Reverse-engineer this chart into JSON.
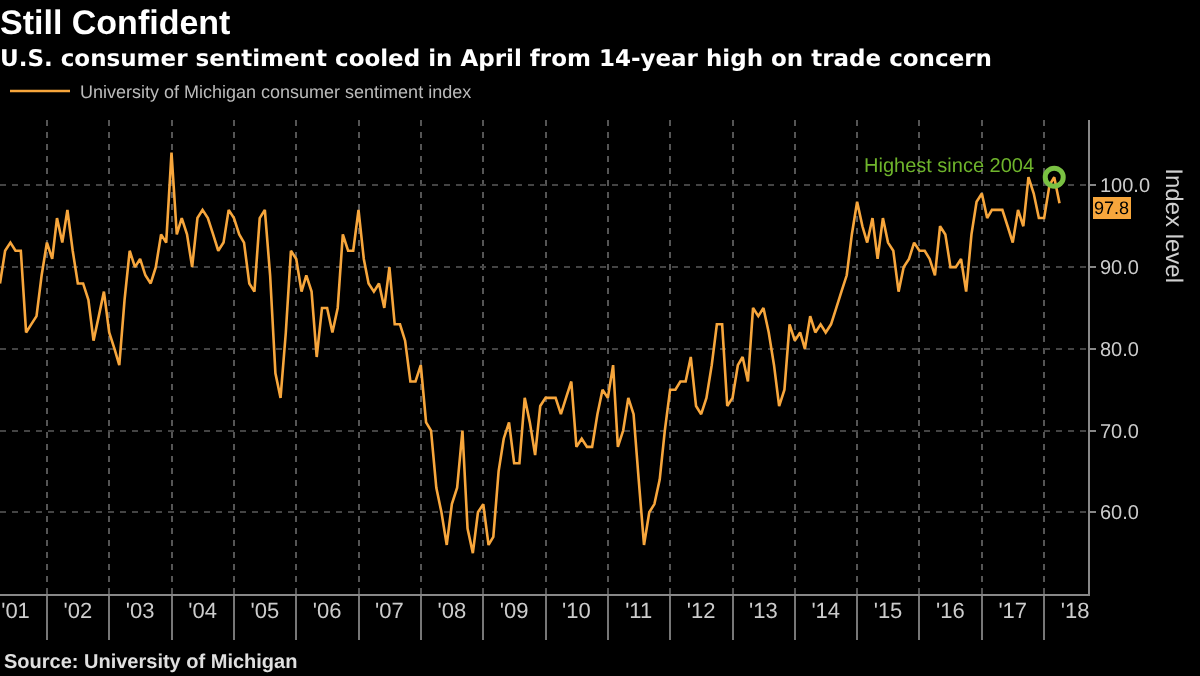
{
  "chart_data": {
    "type": "line",
    "title": "Still Confident",
    "subtitle": "U.S. consumer sentiment cooled in April from 14-year high on trade concern",
    "ylabel": "Index level",
    "x": [
      "2001-04",
      "2001-05",
      "2001-06",
      "2001-07",
      "2001-08",
      "2001-09",
      "2001-10",
      "2001-11",
      "2001-12",
      "2002-01",
      "2002-02",
      "2002-03",
      "2002-04",
      "2002-05",
      "2002-06",
      "2002-07",
      "2002-08",
      "2002-09",
      "2002-10",
      "2002-11",
      "2002-12",
      "2003-01",
      "2003-02",
      "2003-03",
      "2003-04",
      "2003-05",
      "2003-06",
      "2003-07",
      "2003-08",
      "2003-09",
      "2003-10",
      "2003-11",
      "2003-12",
      "2004-01",
      "2004-02",
      "2004-03",
      "2004-04",
      "2004-05",
      "2004-06",
      "2004-07",
      "2004-08",
      "2004-09",
      "2004-10",
      "2004-11",
      "2004-12",
      "2005-01",
      "2005-02",
      "2005-03",
      "2005-04",
      "2005-05",
      "2005-06",
      "2005-07",
      "2005-08",
      "2005-09",
      "2005-10",
      "2005-11",
      "2005-12",
      "2006-01",
      "2006-02",
      "2006-03",
      "2006-04",
      "2006-05",
      "2006-06",
      "2006-07",
      "2006-08",
      "2006-09",
      "2006-10",
      "2006-11",
      "2006-12",
      "2007-01",
      "2007-02",
      "2007-03",
      "2007-04",
      "2007-05",
      "2007-06",
      "2007-07",
      "2007-08",
      "2007-09",
      "2007-10",
      "2007-11",
      "2007-12",
      "2008-01",
      "2008-02",
      "2008-03",
      "2008-04",
      "2008-05",
      "2008-06",
      "2008-07",
      "2008-08",
      "2008-09",
      "2008-10",
      "2008-11",
      "2008-12",
      "2009-01",
      "2009-02",
      "2009-03",
      "2009-04",
      "2009-05",
      "2009-06",
      "2009-07",
      "2009-08",
      "2009-09",
      "2009-10",
      "2009-11",
      "2009-12",
      "2010-01",
      "2010-02",
      "2010-03",
      "2010-04",
      "2010-05",
      "2010-06",
      "2010-07",
      "2010-08",
      "2010-09",
      "2010-10",
      "2010-11",
      "2010-12",
      "2011-01",
      "2011-02",
      "2011-03",
      "2011-04",
      "2011-05",
      "2011-06",
      "2011-07",
      "2011-08",
      "2011-09",
      "2011-10",
      "2011-11",
      "2011-12",
      "2012-01",
      "2012-02",
      "2012-03",
      "2012-04",
      "2012-05",
      "2012-06",
      "2012-07",
      "2012-08",
      "2012-09",
      "2012-10",
      "2012-11",
      "2012-12",
      "2013-01",
      "2013-02",
      "2013-03",
      "2013-04",
      "2013-05",
      "2013-06",
      "2013-07",
      "2013-08",
      "2013-09",
      "2013-10",
      "2013-11",
      "2013-12",
      "2014-01",
      "2014-02",
      "2014-03",
      "2014-04",
      "2014-05",
      "2014-06",
      "2014-07",
      "2014-08",
      "2014-09",
      "2014-10",
      "2014-11",
      "2014-12",
      "2015-01",
      "2015-02",
      "2015-03",
      "2015-04",
      "2015-05",
      "2015-06",
      "2015-07",
      "2015-08",
      "2015-09",
      "2015-10",
      "2015-11",
      "2015-12",
      "2016-01",
      "2016-02",
      "2016-03",
      "2016-04",
      "2016-05",
      "2016-06",
      "2016-07",
      "2016-08",
      "2016-09",
      "2016-10",
      "2016-11",
      "2016-12",
      "2017-01",
      "2017-02",
      "2017-03",
      "2017-04",
      "2017-05",
      "2017-06",
      "2017-07",
      "2017-08",
      "2017-09",
      "2017-10",
      "2017-11",
      "2017-12",
      "2018-01",
      "2018-02",
      "2018-03",
      "2018-04"
    ],
    "series": [
      {
        "name": "University of Michigan consumer sentiment index",
        "color": "#f7a63c",
        "values": [
          88,
          92,
          93,
          92,
          92,
          82,
          83,
          84,
          89,
          93,
          91,
          96,
          93,
          97,
          92,
          88,
          88,
          86,
          81,
          84,
          87,
          82,
          80,
          78,
          86,
          92,
          90,
          91,
          89,
          88,
          90,
          94,
          93,
          104,
          94,
          96,
          94,
          90,
          96,
          97,
          96,
          94,
          92,
          93,
          97,
          96,
          94,
          93,
          88,
          87,
          96,
          97,
          89,
          77,
          74,
          82,
          92,
          91,
          87,
          89,
          87,
          79,
          85,
          85,
          82,
          85,
          94,
          92,
          92,
          97,
          91,
          88,
          87,
          88,
          85,
          90,
          83,
          83,
          81,
          76,
          76,
          78,
          71,
          70,
          63,
          60,
          56,
          61,
          63,
          70,
          58,
          55,
          60,
          61,
          56,
          57,
          65,
          69,
          71,
          66,
          66,
          74,
          71,
          67,
          73,
          74,
          74,
          74,
          72,
          74,
          76,
          68,
          69,
          68,
          68,
          72,
          75,
          74,
          78,
          68,
          70,
          74,
          72,
          64,
          56,
          60,
          61,
          64,
          70,
          75,
          75,
          76,
          76,
          79,
          73,
          72,
          74,
          78,
          83,
          83,
          73,
          74,
          78,
          79,
          76,
          85,
          84,
          85,
          82,
          78,
          73,
          75,
          83,
          81,
          82,
          80,
          84,
          82,
          83,
          82,
          83,
          85,
          87,
          89,
          94,
          98,
          95,
          93,
          96,
          91,
          96,
          93,
          92,
          87,
          90,
          91,
          93,
          92,
          92,
          91,
          89,
          95,
          94,
          90,
          90,
          91,
          87,
          94,
          98,
          99,
          96,
          97,
          97,
          97,
          95,
          93,
          97,
          95,
          101,
          99,
          96,
          96,
          100,
          101,
          97.8
        ],
        "value_labels": [
          null,
          null,
          null,
          null,
          null,
          null,
          null,
          null,
          null,
          null,
          null,
          null,
          null,
          null,
          null,
          null,
          null,
          null,
          null,
          null,
          null,
          null,
          null,
          null,
          null,
          null,
          null,
          null,
          null,
          null,
          null,
          null,
          null,
          null,
          null,
          null,
          null,
          null,
          null,
          null,
          null,
          null,
          null,
          null,
          null,
          null,
          null,
          null,
          null,
          null,
          null,
          null,
          null,
          null,
          null,
          null,
          null,
          null,
          null,
          null,
          null,
          null,
          null,
          null,
          null,
          null,
          null,
          null,
          null,
          null,
          null,
          null,
          null,
          null,
          null,
          null,
          null,
          null,
          null,
          null,
          null,
          null,
          null,
          null,
          null,
          null,
          null,
          null,
          null,
          null,
          null,
          null,
          null,
          null,
          null,
          null,
          null,
          null,
          null,
          null,
          null,
          null,
          null,
          null,
          null,
          null,
          null,
          null,
          null,
          null,
          null,
          null,
          null,
          null,
          null,
          null,
          null,
          null,
          null,
          null,
          null,
          null,
          null,
          null,
          null,
          null,
          null,
          null,
          null,
          null,
          null,
          null,
          null,
          null,
          null,
          null,
          null,
          null,
          null,
          null,
          null,
          null,
          null,
          null,
          null,
          null,
          null,
          null,
          null,
          null,
          null,
          null,
          null,
          null,
          null,
          null,
          null,
          null,
          null,
          null,
          null,
          null,
          null,
          null,
          null,
          null,
          null,
          null,
          null,
          null,
          null,
          null,
          null,
          null,
          null,
          null,
          null,
          null,
          null,
          null,
          null,
          null,
          null,
          null,
          null,
          null,
          null,
          null,
          null,
          null,
          null,
          null,
          null,
          null,
          null,
          null,
          null,
          null,
          null,
          null,
          null,
          null,
          null,
          null,
          "97.8"
        ]
      }
    ],
    "annotations": [
      {
        "text": "Highest since 2004",
        "x": "2018-03",
        "y": 101
      },
      "Source: University of Michigan"
    ],
    "xlim": [
      "2001-04-01",
      "2018-09-15"
    ],
    "xticks": [
      {
        "value": "2002-01-01",
        "label": null
      },
      {
        "value": "2003-01-01",
        "label": null
      },
      {
        "value": "2004-01-01",
        "label": null
      },
      {
        "value": "2005-01-01",
        "label": null
      },
      {
        "value": "2006-01-01",
        "label": null
      },
      {
        "value": "2007-01-01",
        "label": null
      },
      {
        "value": "2008-01-01",
        "label": null
      },
      {
        "value": "2009-01-01",
        "label": null
      },
      {
        "value": "2010-01-01",
        "label": null
      },
      {
        "value": "2011-01-01",
        "label": null
      },
      {
        "value": "2012-01-01",
        "label": null
      },
      {
        "value": "2013-01-01",
        "label": null
      },
      {
        "value": "2014-01-01",
        "label": null
      },
      {
        "value": "2015-01-01",
        "label": null
      },
      {
        "value": "2016-01-01",
        "label": null
      },
      {
        "value": "2017-01-01",
        "label": null
      },
      {
        "value": "2018-01-01",
        "label": null
      },
      {
        "value": "2001-07-01",
        "label": "'01"
      },
      {
        "value": "2002-07-01",
        "label": "'02"
      },
      {
        "value": "2003-07-01",
        "label": "'03"
      },
      {
        "value": "2004-07-01",
        "label": "'04"
      },
      {
        "value": "2005-07-01",
        "label": "'05"
      },
      {
        "value": "2006-07-01",
        "label": "'06"
      },
      {
        "value": "2007-07-01",
        "label": "'07"
      },
      {
        "value": "2008-07-01",
        "label": "'08"
      },
      {
        "value": "2009-07-01",
        "label": "'09"
      },
      {
        "value": "2010-07-01",
        "label": "'10"
      },
      {
        "value": "2011-07-01",
        "label": "'11"
      },
      {
        "value": "2012-07-01",
        "label": "'12"
      },
      {
        "value": "2013-07-01",
        "label": "'13"
      },
      {
        "value": "2014-07-01",
        "label": "'14"
      },
      {
        "value": "2015-07-01",
        "label": "'15"
      },
      {
        "value": "2016-07-01",
        "label": "'16"
      },
      {
        "value": "2017-07-01",
        "label": "'17"
      },
      {
        "value": "2018-07-01",
        "label": "'18"
      }
    ],
    "ylim": [
      50,
      108
    ],
    "yticks": [
      {
        "value": 60,
        "label": "60.0"
      },
      {
        "value": 70,
        "label": "70.0"
      },
      {
        "value": 80,
        "label": "80.0"
      },
      {
        "value": 90,
        "label": "90.0"
      },
      {
        "value": 100,
        "label": "100.0"
      }
    ],
    "grid": true,
    "legend": "top left",
    "marker": "none",
    "line_style": "solid"
  }
}
